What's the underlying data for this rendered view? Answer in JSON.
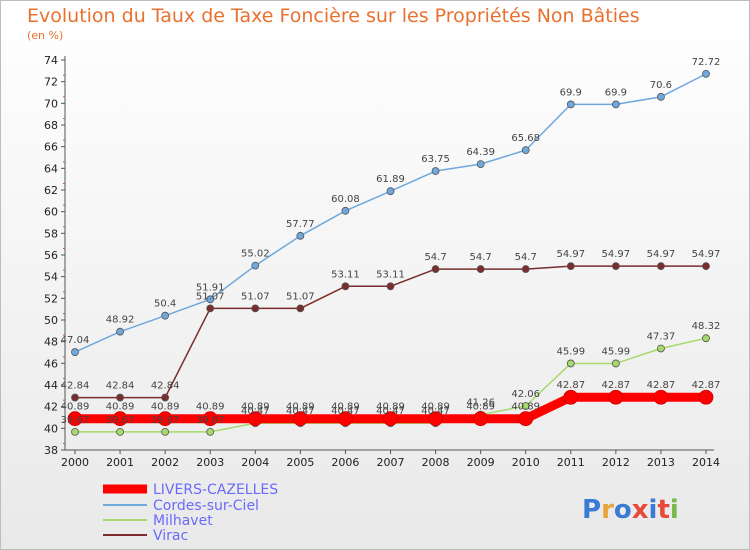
{
  "chart_data": {
    "type": "line",
    "title": "Evolution du Taux de Taxe Foncière sur les Propriétés Non Bâties",
    "subtitle": "(en %)",
    "xlabel": "",
    "ylabel": "",
    "x": [
      "2000",
      "2001",
      "2002",
      "2003",
      "2004",
      "2005",
      "2006",
      "2007",
      "2008",
      "2009",
      "2010",
      "2011",
      "2012",
      "2013",
      "2014"
    ],
    "ylim": [
      38,
      74
    ],
    "yticks": [
      38,
      40,
      42,
      44,
      46,
      48,
      50,
      52,
      54,
      56,
      58,
      60,
      62,
      64,
      66,
      68,
      70,
      72,
      74
    ],
    "grid": false,
    "legend_position": "bottom-left",
    "series": [
      {
        "name": "LIVERS-CAZELLES",
        "color": "#ff0000",
        "values": [
          40.89,
          40.89,
          40.89,
          40.89,
          40.89,
          40.89,
          40.89,
          40.89,
          40.89,
          40.89,
          40.89,
          42.87,
          42.87,
          42.87,
          42.87
        ],
        "labels": [
          "40.89",
          "40.89",
          "40.89",
          "40.89",
          "40.89",
          "40.89",
          "40.89",
          "40.89",
          "40.89",
          "40.89",
          "40.89",
          "42.87",
          "42.87",
          "42.87",
          "42.87"
        ]
      },
      {
        "name": "Cordes-sur-Ciel",
        "color": "#6fa8dc",
        "values": [
          47.04,
          48.92,
          50.4,
          51.91,
          55.02,
          57.77,
          60.08,
          61.89,
          63.75,
          64.39,
          65.68,
          69.9,
          69.9,
          70.6,
          72.72
        ],
        "labels": [
          "47.04",
          "48.92",
          "50.4",
          "51.91",
          "55.02",
          "57.77",
          "60.08",
          "61.89",
          "63.75",
          "64.39",
          "65.68",
          "69.9",
          "69.9",
          "70.6",
          "72.72"
        ]
      },
      {
        "name": "Milhavet",
        "color": "#a6d96a",
        "values": [
          39.67,
          39.67,
          39.67,
          39.67,
          40.47,
          40.47,
          40.47,
          40.47,
          40.47,
          41.26,
          42.06,
          45.99,
          45.99,
          47.37,
          48.32
        ],
        "labels": [
          "39.67",
          "39.67",
          "39.67",
          "39.67",
          "40.47",
          "40.47",
          "40.47",
          "40.47",
          "40.47",
          "41.26",
          "42.06",
          "45.99",
          "45.99",
          "47.37",
          "48.32"
        ]
      },
      {
        "name": "Virac",
        "color": "#7b2c2c",
        "values": [
          42.84,
          42.84,
          42.84,
          51.07,
          51.07,
          51.07,
          53.11,
          53.11,
          54.7,
          54.7,
          54.7,
          54.97,
          54.97,
          54.97,
          54.97
        ],
        "labels": [
          "42.84",
          "42.84",
          "42.84",
          "51.07",
          "51.07",
          "51.07",
          "53.11",
          "53.11",
          "54.7",
          "54.7",
          "54.7",
          "54.97",
          "54.97",
          "54.97",
          "54.97"
        ]
      }
    ]
  },
  "logo": {
    "text": "Proxiti",
    "letter_colors": [
      "#3a7bd5",
      "#e8a33a",
      "#3a7bd5",
      "#e84a3a",
      "#3a7bd5",
      "#e84a3a",
      "#7ab648"
    ]
  }
}
